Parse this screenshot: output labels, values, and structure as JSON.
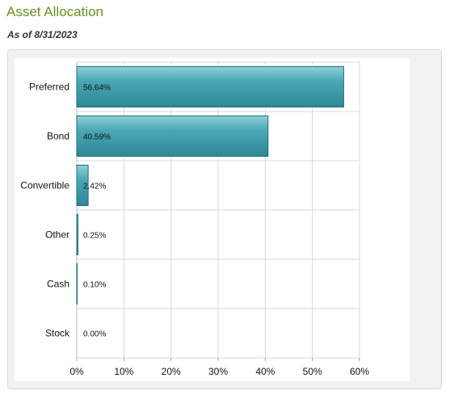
{
  "header": {
    "title": "Asset Allocation",
    "as_of": "As of 8/31/2023"
  },
  "colors": {
    "title": "#6b8e23",
    "bar": "#4aa8b5",
    "bar_light": "#8fd0d9",
    "bar_dark": "#2e8794",
    "bar_stroke": "#1f6f7b",
    "grid": "#d9d9d9"
  },
  "chart_data": {
    "type": "bar",
    "orientation": "horizontal",
    "categories": [
      "Preferred",
      "Bond",
      "Convertible",
      "Other",
      "Cash",
      "Stock"
    ],
    "values": [
      56.64,
      40.59,
      2.42,
      0.25,
      0.1,
      0.0
    ],
    "value_labels": [
      "56.64%",
      "40.59%",
      "2.42%",
      "0.25%",
      "0.10%",
      "0.00%"
    ],
    "xlim": [
      0,
      60
    ],
    "xticks": [
      "0%",
      "10%",
      "20%",
      "30%",
      "40%",
      "50%",
      "60%"
    ],
    "grid": true,
    "legend": "none"
  }
}
